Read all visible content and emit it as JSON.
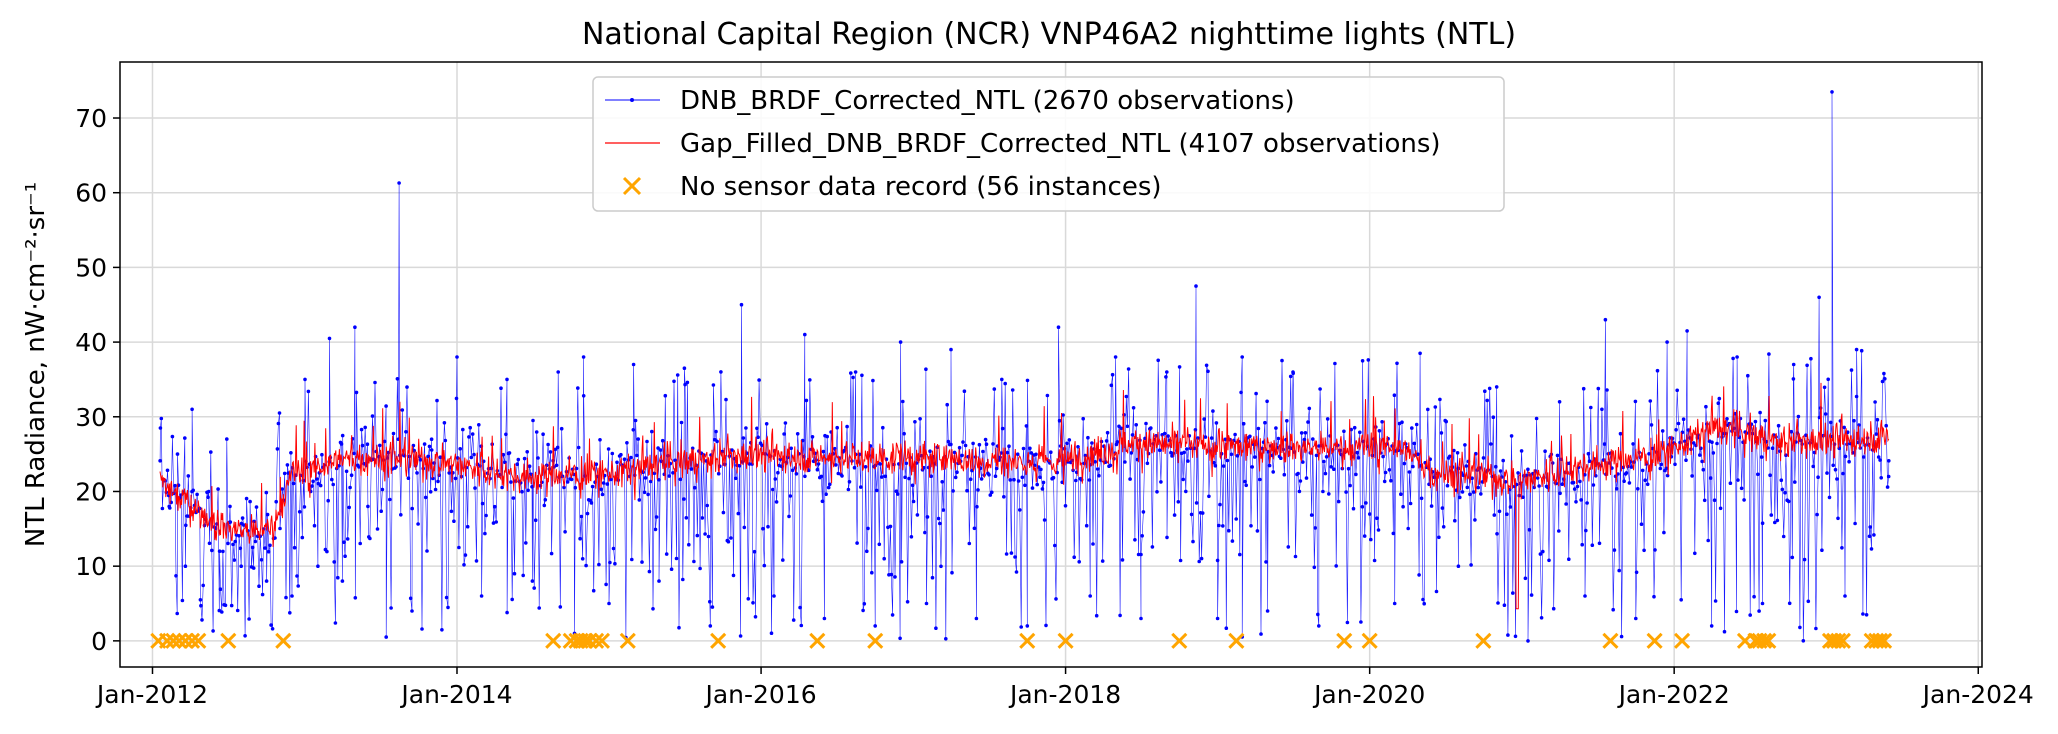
{
  "chart_data": {
    "type": "line",
    "title": "National Capital Region (NCR) VNP46A2 nighttime lights (NTL)",
    "ylabel": "NTL Radiance, nW·cm⁻²·sr⁻¹",
    "xlabel": "",
    "x_axis_type": "date",
    "xlim": [
      "2011-10-15",
      "2024-01-10"
    ],
    "ylim": [
      -3.5,
      77.5
    ],
    "x_ticks": [
      "2012-01-01",
      "2014-01-01",
      "2016-01-01",
      "2018-01-01",
      "2020-01-01",
      "2022-01-01",
      "2024-01-01"
    ],
    "x_tick_labels": [
      "Jan-2012",
      "Jan-2014",
      "Jan-2016",
      "Jan-2018",
      "Jan-2020",
      "Jan-2022",
      "Jan-2024"
    ],
    "y_ticks": [
      0,
      10,
      20,
      30,
      40,
      50,
      60,
      70
    ],
    "grid": true,
    "legend_position": "top-center",
    "series": [
      {
        "name": "DNB_BRDF_Corrected_NTL (2670 observations)",
        "color": "#0000ff",
        "style": "line-with-dots",
        "observation_count": 2670,
        "date_range": [
          "2012-01-19",
          "2023-05-31"
        ],
        "points": [
          [
            "2012-01-20",
            28.5
          ],
          [
            "2012-02-10",
            18.0
          ],
          [
            "2012-03-01",
            25.0
          ],
          [
            "2012-03-20",
            10.0
          ],
          [
            "2012-04-05",
            31.0
          ],
          [
            "2012-04-25",
            5.5
          ],
          [
            "2012-05-15",
            20.0
          ],
          [
            "2012-06-10",
            12.0
          ],
          [
            "2012-07-05",
            18.0
          ],
          [
            "2012-08-01",
            10.0
          ],
          [
            "2012-09-01",
            16.0
          ],
          [
            "2012-10-01",
            8.0
          ],
          [
            "2012-11-01",
            30.5
          ],
          [
            "2012-12-01",
            6.0
          ],
          [
            "2013-01-01",
            35.0
          ],
          [
            "2013-02-01",
            10.0
          ],
          [
            "2013-03-01",
            40.5
          ],
          [
            "2013-04-01",
            8.0
          ],
          [
            "2013-05-01",
            42.0
          ],
          [
            "2013-06-01",
            18.0
          ],
          [
            "2013-07-15",
            0.5
          ],
          [
            "2013-08-15",
            61.3
          ],
          [
            "2013-09-15",
            4.0
          ],
          [
            "2013-11-01",
            27.0
          ],
          [
            "2014-01-01",
            38.0
          ],
          [
            "2014-03-01",
            6.0
          ],
          [
            "2014-05-01",
            35.0
          ],
          [
            "2014-07-01",
            8.0
          ],
          [
            "2014-09-01",
            36.0
          ],
          [
            "2014-10-10",
            1.0
          ],
          [
            "2014-11-01",
            38.0
          ],
          [
            "2015-01-01",
            5.0
          ],
          [
            "2015-03-01",
            37.0
          ],
          [
            "2015-05-01",
            8.0
          ],
          [
            "2015-07-01",
            36.5
          ],
          [
            "2015-09-01",
            2.0
          ],
          [
            "2015-11-15",
            45.0
          ],
          [
            "2016-02-01",
            6.0
          ],
          [
            "2016-04-15",
            41.0
          ],
          [
            "2016-06-01",
            3.0
          ],
          [
            "2016-08-15",
            36.0
          ],
          [
            "2016-10-01",
            2.0
          ],
          [
            "2016-12-01",
            40.0
          ],
          [
            "2017-02-01",
            5.0
          ],
          [
            "2017-04-01",
            39.0
          ],
          [
            "2017-06-01",
            3.0
          ],
          [
            "2017-08-01",
            35.0
          ],
          [
            "2017-10-01",
            2.0
          ],
          [
            "2017-12-15",
            42.0
          ],
          [
            "2018-03-01",
            6.0
          ],
          [
            "2018-05-01",
            38.0
          ],
          [
            "2018-07-01",
            3.0
          ],
          [
            "2018-09-01",
            36.0
          ],
          [
            "2018-11-10",
            47.5
          ],
          [
            "2019-01-01",
            3.0
          ],
          [
            "2019-03-01",
            38.0
          ],
          [
            "2019-05-01",
            4.0
          ],
          [
            "2019-07-01",
            36.0
          ],
          [
            "2019-09-01",
            2.0
          ],
          [
            "2019-12-15",
            37.5
          ],
          [
            "2020-03-01",
            5.0
          ],
          [
            "2020-05-01",
            38.5
          ],
          [
            "2020-08-01",
            10.0
          ],
          [
            "2020-11-01",
            34.0
          ],
          [
            "2021-01-15",
            0.0
          ],
          [
            "2021-04-01",
            32.0
          ],
          [
            "2021-06-01",
            6.0
          ],
          [
            "2021-07-20",
            43.0
          ],
          [
            "2021-10-01",
            3.0
          ],
          [
            "2021-12-15",
            40.0
          ],
          [
            "2022-02-01",
            41.5
          ],
          [
            "2022-04-01",
            2.0
          ],
          [
            "2022-06-01",
            38.0
          ],
          [
            "2022-08-01",
            5.0
          ],
          [
            "2022-10-15",
            37.0
          ],
          [
            "2022-12-15",
            46.0
          ],
          [
            "2023-01-15",
            73.5
          ],
          [
            "2023-02-15",
            6.0
          ],
          [
            "2023-03-15",
            39.0
          ],
          [
            "2023-04-15",
            14.0
          ],
          [
            "2023-05-31",
            22.0
          ]
        ]
      },
      {
        "name": "Gap_Filled_DNB_BRDF_Corrected_NTL (4107 observations)",
        "color": "#ff0000",
        "style": "line",
        "observation_count": 4107,
        "date_range": [
          "2012-01-19",
          "2023-05-31"
        ],
        "baseline": [
          [
            "2012-01-19",
            21.0
          ],
          [
            "2012-04-01",
            18.5
          ],
          [
            "2012-06-01",
            15.5
          ],
          [
            "2012-09-01",
            14.5
          ],
          [
            "2012-10-15",
            15.0
          ],
          [
            "2012-12-01",
            22.0
          ],
          [
            "2013-03-01",
            24.0
          ],
          [
            "2013-06-01",
            24.5
          ],
          [
            "2013-12-01",
            24.0
          ],
          [
            "2014-06-01",
            22.0
          ],
          [
            "2015-01-01",
            22.5
          ],
          [
            "2015-07-01",
            24.0
          ],
          [
            "2016-01-01",
            25.0
          ],
          [
            "2016-07-01",
            24.5
          ],
          [
            "2017-01-01",
            24.5
          ],
          [
            "2017-09-01",
            24.0
          ],
          [
            "2018-01-01",
            24.0
          ],
          [
            "2018-06-01",
            26.5
          ],
          [
            "2018-12-01",
            26.0
          ],
          [
            "2019-06-01",
            26.0
          ],
          [
            "2019-12-01",
            25.5
          ],
          [
            "2020-03-01",
            26.5
          ],
          [
            "2020-06-01",
            22.5
          ],
          [
            "2021-01-01",
            21.5
          ],
          [
            "2021-06-01",
            23.5
          ],
          [
            "2021-12-01",
            25.0
          ],
          [
            "2022-04-01",
            28.5
          ],
          [
            "2022-10-01",
            26.5
          ],
          [
            "2023-03-01",
            27.0
          ],
          [
            "2023-05-31",
            27.5
          ]
        ],
        "minimum": [
          "2020-12-20",
          4.3
        ]
      },
      {
        "name": "No sensor data record  (56 instances)",
        "color": "#ffa500",
        "marker": "x",
        "instance_count": 56,
        "y": 0,
        "x": [
          "2012-01-15",
          "2012-02-05",
          "2012-02-20",
          "2012-03-05",
          "2012-03-20",
          "2012-04-05",
          "2012-04-20",
          "2012-07-01",
          "2012-11-10",
          "2014-08-20",
          "2014-10-01",
          "2014-10-15",
          "2014-10-25",
          "2014-11-05",
          "2014-11-15",
          "2014-12-01",
          "2014-12-15",
          "2015-02-15",
          "2015-09-20",
          "2016-05-15",
          "2016-10-01",
          "2017-10-01",
          "2018-01-01",
          "2018-10-01",
          "2019-02-15",
          "2019-11-01",
          "2020-01-01",
          "2020-09-30",
          "2021-08-01",
          "2021-11-15",
          "2022-01-20",
          "2022-06-20",
          "2022-07-15",
          "2022-07-25",
          "2022-08-05",
          "2022-08-15",
          "2023-01-10",
          "2023-01-20",
          "2023-01-30",
          "2023-02-10",
          "2023-04-20",
          "2023-05-01",
          "2023-05-10",
          "2023-05-20"
        ]
      }
    ]
  }
}
